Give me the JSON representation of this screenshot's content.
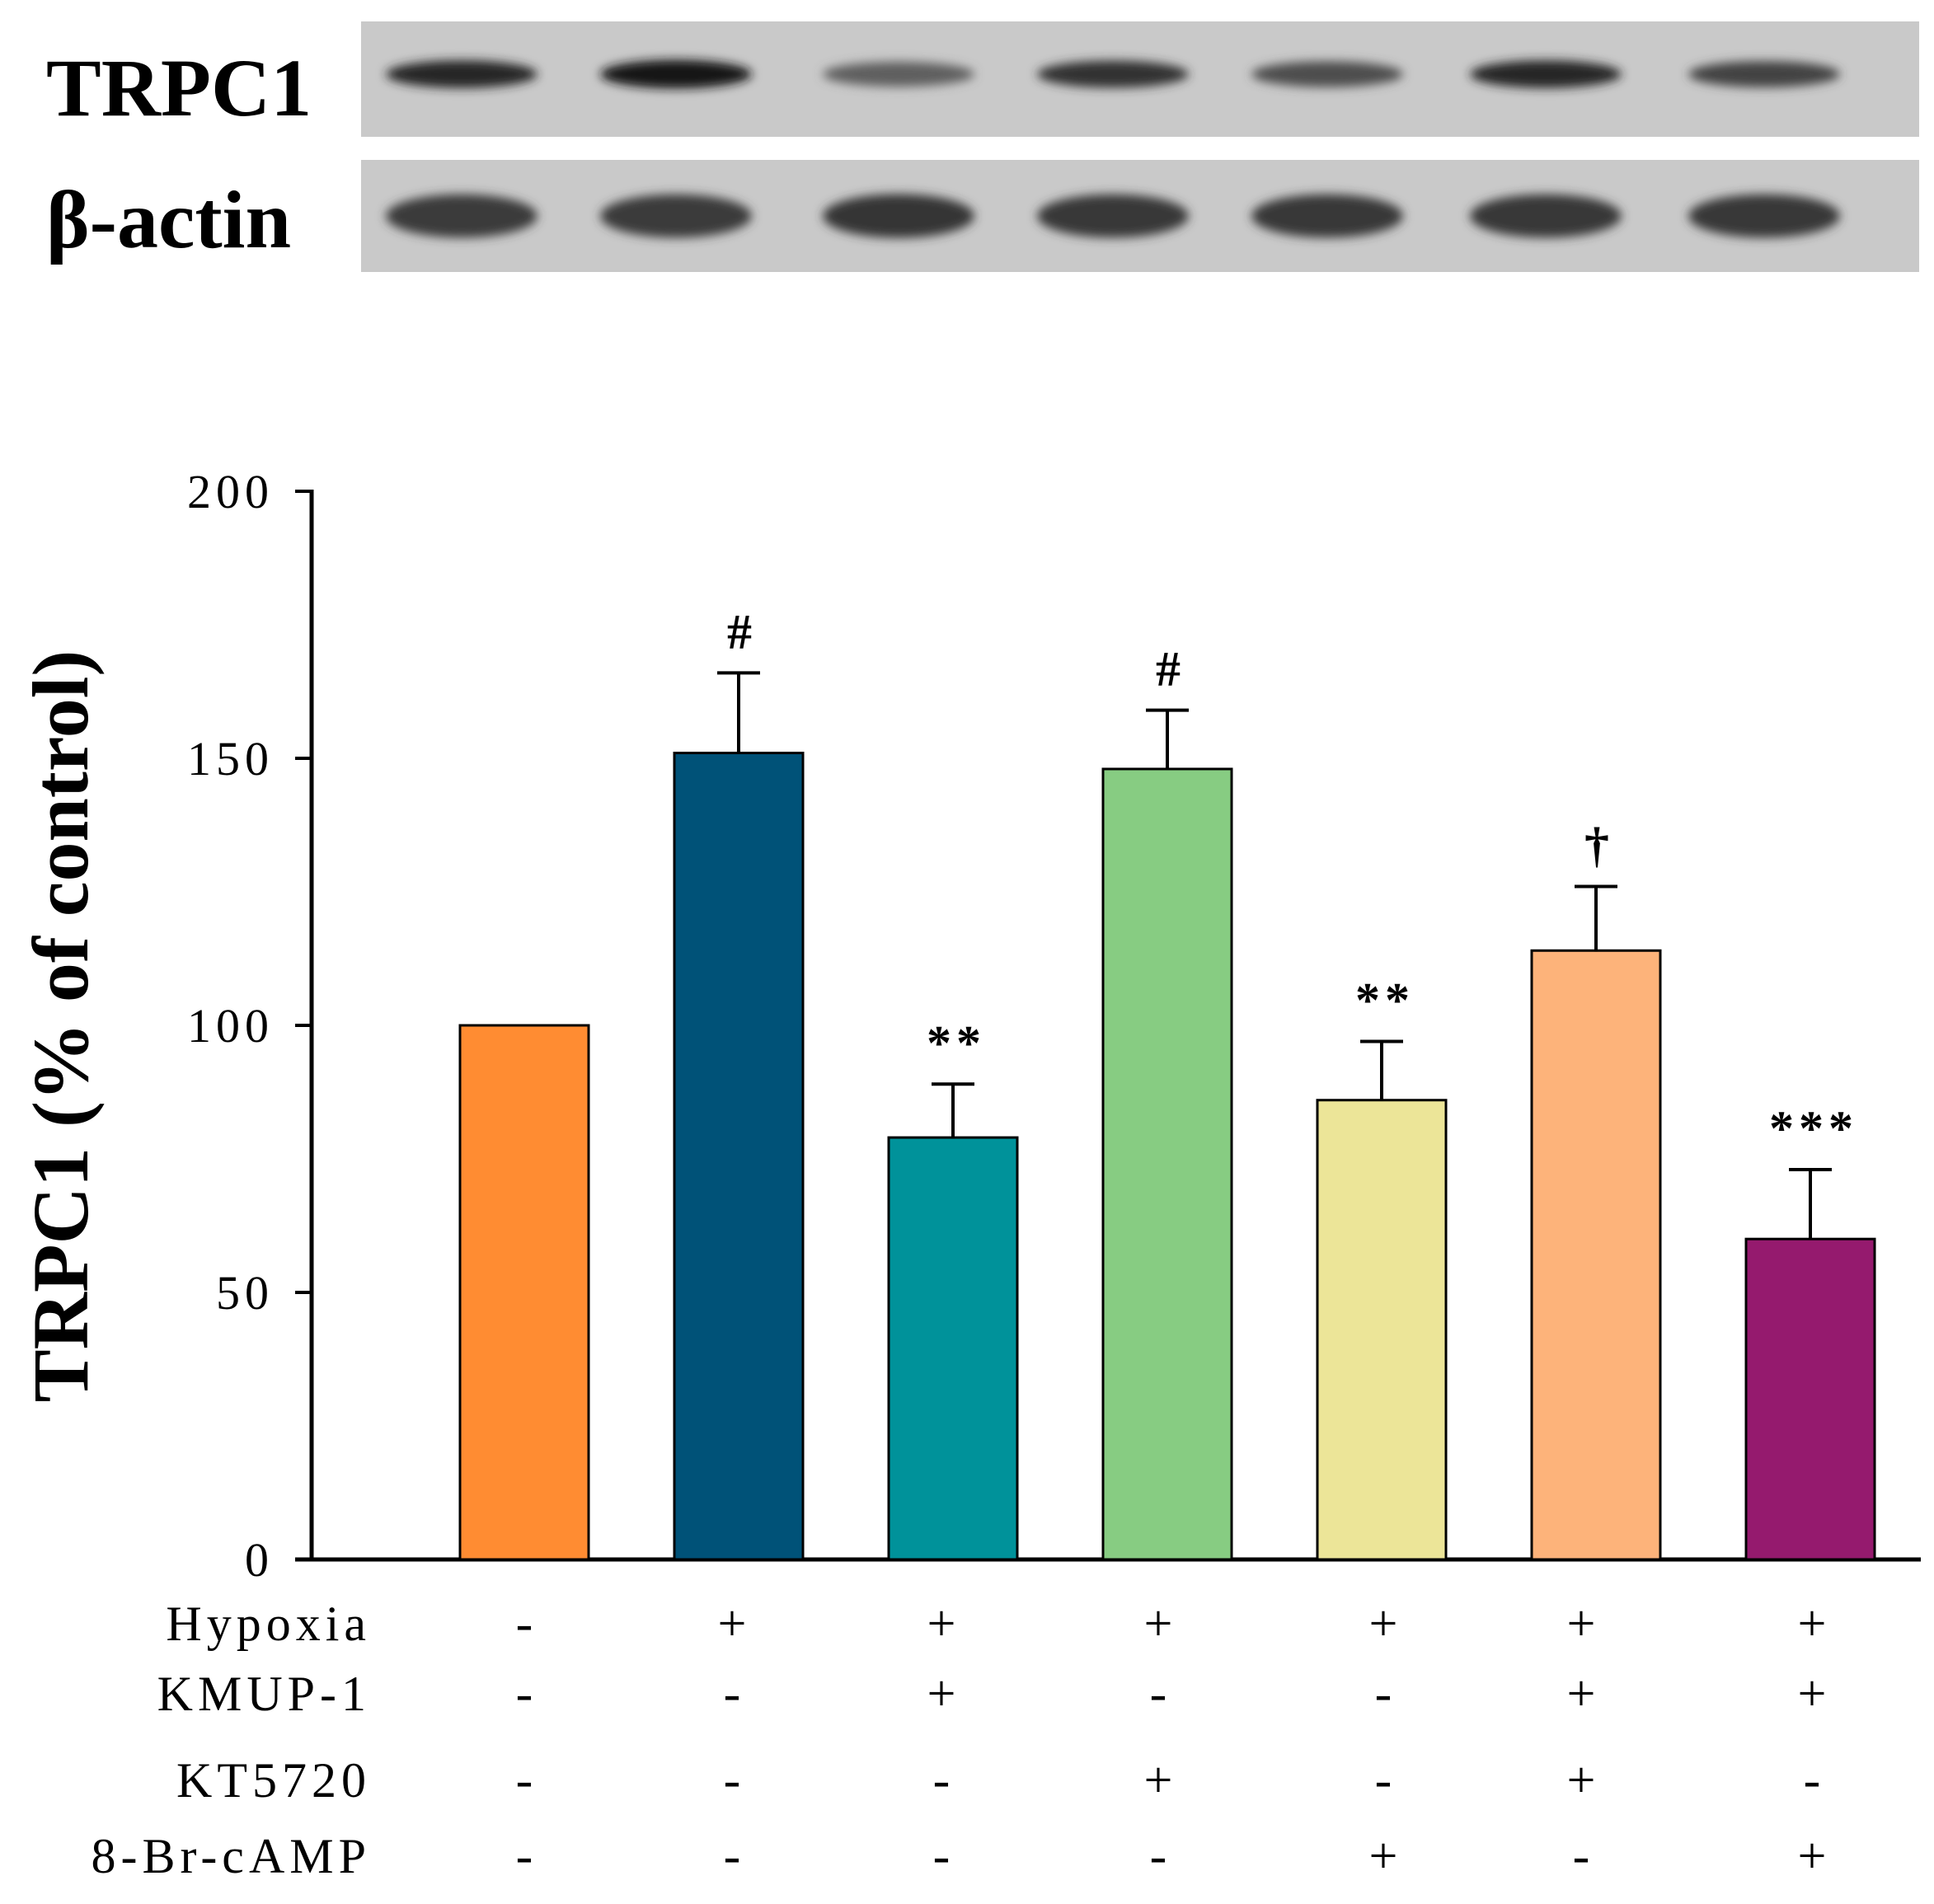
{
  "blot": {
    "rows": [
      {
        "label": "TRPC1",
        "band_intensity": [
          0.85,
          0.95,
          0.55,
          0.8,
          0.65,
          0.85,
          0.7
        ]
      },
      {
        "label": "β-actin",
        "band_intensity": [
          0.75,
          0.75,
          0.78,
          0.76,
          0.76,
          0.76,
          0.76
        ]
      }
    ]
  },
  "chart_data": {
    "type": "bar",
    "ylabel": "TRPC1 (% of control)",
    "xlabel": "",
    "ylim": [
      0,
      200
    ],
    "yticks": [
      0,
      50,
      100,
      150,
      200
    ],
    "grid": false,
    "values": [
      100,
      151,
      79,
      148,
      86,
      114,
      60
    ],
    "errors": [
      0,
      15,
      10,
      11,
      11,
      12,
      13
    ],
    "colors": [
      "#FF8C32",
      "#005278",
      "#00929A",
      "#87CC82",
      "#ECE598",
      "#FDB37A",
      "#951A6E"
    ],
    "annotations": [
      "",
      "#",
      "**",
      "#",
      "**",
      "†",
      "***"
    ],
    "conditions": [
      {
        "name": "Hypoxia",
        "signs": [
          "-",
          "+",
          "+",
          "+",
          "+",
          "+",
          "+"
        ]
      },
      {
        "name": "KMUP-1",
        "signs": [
          "-",
          "-",
          "+",
          "-",
          "-",
          "+",
          "+"
        ]
      },
      {
        "name": "KT5720",
        "signs": [
          "-",
          "-",
          "-",
          "+",
          "-",
          "+",
          "-"
        ]
      },
      {
        "name": "8-Br-cAMP",
        "signs": [
          "-",
          "-",
          "-",
          "-",
          "+",
          "-",
          "+"
        ]
      }
    ]
  }
}
